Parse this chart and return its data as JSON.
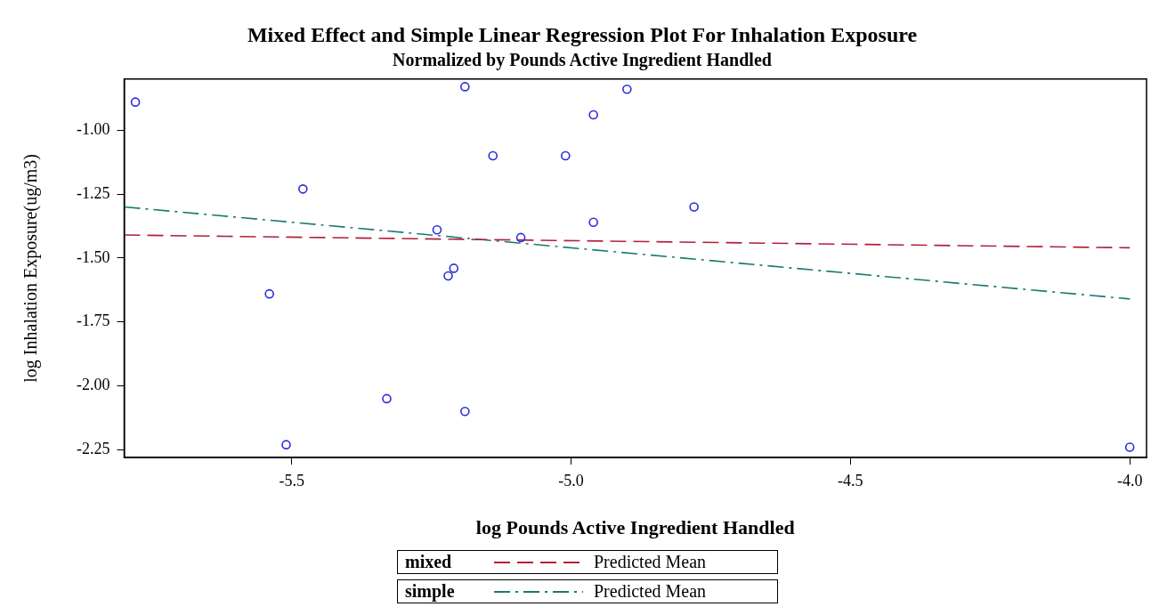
{
  "chart_data": {
    "type": "scatter",
    "title": "Mixed Effect and Simple Linear Regression Plot For Inhalation Exposure",
    "subtitle": "Normalized by Pounds Active Ingredient Handled",
    "xlabel": "log Pounds Active Ingredient Handled",
    "ylabel": "log Inhalation Exposure(ug/m3)",
    "legend_title": "Predicted Mean",
    "legend": "bottom",
    "grid": false,
    "xlim": [
      -5.8,
      -3.97
    ],
    "ylim": [
      -2.28,
      -0.8
    ],
    "xticks": [
      -5.5,
      {
        "value": -5,
        "label": "-5.0"
      },
      -4.5,
      {
        "value": -4,
        "label": "-4.0"
      }
    ],
    "yticks": [
      {
        "value": -2.25,
        "label": "-2.25"
      },
      {
        "value": -2,
        "label": "-2.00"
      },
      {
        "value": -1.75,
        "label": "-1.75"
      },
      {
        "value": -1.5,
        "label": "-1.50"
      },
      {
        "value": -1.25,
        "label": "-1.25"
      },
      {
        "value": -1,
        "label": "-1.00"
      }
    ],
    "series": [
      {
        "type": "scatter",
        "marker": "circle",
        "color": "#2a2ae0",
        "x": [
          -5.78,
          -5.19,
          -4.9,
          -4.96,
          -5.14,
          -5.01,
          -5.48,
          -4.78,
          -5.24,
          -4.96,
          -5.09,
          -5.21,
          -5.22,
          -5.54,
          -5.33,
          -5.19,
          -5.51,
          -4.0
        ],
        "values": [
          -0.89,
          -0.83,
          -0.84,
          -0.94,
          -1.1,
          -1.1,
          -1.23,
          -1.3,
          -1.39,
          -1.36,
          -1.42,
          -1.54,
          -1.57,
          -1.64,
          -2.05,
          -2.1,
          -2.23,
          -2.24
        ]
      },
      {
        "type": "line",
        "name": "mixed",
        "color": "#b0203a",
        "line_style": "dashed",
        "marker": "none",
        "x": [
          -5.8,
          -4.0
        ],
        "values": [
          -1.41,
          -1.46
        ]
      },
      {
        "type": "line",
        "name": "simple",
        "color": "#1a7a70",
        "line_style": "dashdot",
        "marker": "none",
        "x": [
          -5.8,
          -4.0
        ],
        "values": [
          -1.3,
          -1.66
        ]
      }
    ]
  }
}
